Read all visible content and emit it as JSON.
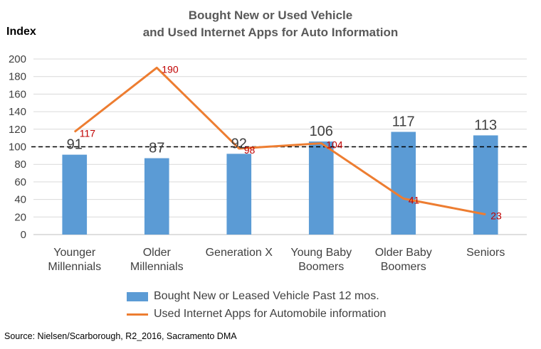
{
  "chart_data": {
    "type": "bar",
    "title": "Bought New or Used Vehicle",
    "subtitle": "and Used Internet Apps for Auto Information",
    "ylabel": "Index",
    "xlabel": "",
    "ylim": [
      0,
      200
    ],
    "yticks": [
      0,
      20,
      40,
      60,
      80,
      100,
      120,
      140,
      160,
      180,
      200
    ],
    "grid": true,
    "reference_line": 100,
    "legend_position": "bottom",
    "categories": [
      [
        "Younger",
        "Millennials"
      ],
      [
        "Older",
        "Millennials"
      ],
      [
        "Generation X"
      ],
      [
        "Young Baby",
        "Boomers"
      ],
      [
        "Older Baby",
        "Boomers"
      ],
      [
        "Seniors"
      ]
    ],
    "series": [
      {
        "name": "Bought New or Leased  Vehicle Past 12 mos.",
        "type": "bar",
        "color": "#5B9BD5",
        "values": [
          91,
          87,
          92,
          106,
          117,
          113
        ]
      },
      {
        "name": "Used  Internet Apps for Automobile information",
        "type": "line",
        "color": "#ED7D31",
        "values": [
          117,
          190,
          98,
          104,
          41,
          23
        ]
      }
    ]
  },
  "source": "Source:  Nielsen/Scarborough, R2_2016, Sacramento DMA"
}
